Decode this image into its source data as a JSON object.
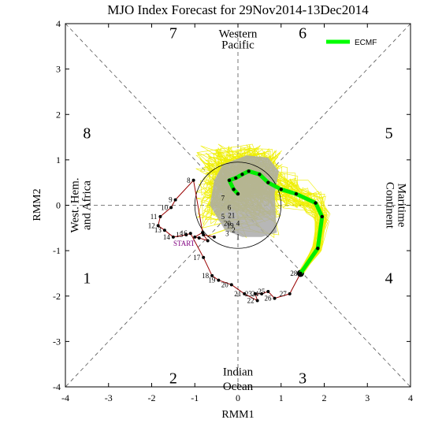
{
  "chart_data": {
    "type": "line",
    "title": "MJO Index Forecast for 29Nov2014-13Dec2014",
    "xlabel": "RMM1",
    "ylabel": "RMM2",
    "xlim": [
      -4,
      4
    ],
    "ylim": [
      -4,
      4
    ],
    "xticks": [
      "-4",
      "-3",
      "-2",
      "-1",
      "0",
      "1",
      "2",
      "3",
      "4"
    ],
    "yticks": [
      "-4",
      "-3",
      "-2",
      "-1",
      "0",
      "1",
      "2",
      "3",
      "4"
    ],
    "phases": [
      {
        "label": "1",
        "x": -3.5,
        "y": -1.6
      },
      {
        "label": "2",
        "x": -1.5,
        "y": -3.8
      },
      {
        "label": "3",
        "x": 1.5,
        "y": -3.8
      },
      {
        "label": "4",
        "x": 3.5,
        "y": -1.6
      },
      {
        "label": "5",
        "x": 3.5,
        "y": 1.6
      },
      {
        "label": "6",
        "x": 1.5,
        "y": 3.8
      },
      {
        "label": "7",
        "x": -1.5,
        "y": 3.8
      },
      {
        "label": "8",
        "x": -3.5,
        "y": 1.6
      }
    ],
    "regions": {
      "top": [
        "Western",
        "Pacific"
      ],
      "bottom": [
        "Indian",
        "Ocean"
      ],
      "left": [
        "West. Hem.",
        "and Africa"
      ],
      "right": [
        "Maritime",
        "Continent"
      ]
    },
    "legend": {
      "label": "ECMF",
      "color": "#00ff00",
      "position": "top-right"
    },
    "start_label": "START",
    "observed": {
      "color": "#990000",
      "points": [
        {
          "label": "",
          "x": -0.55,
          "y": -0.7
        },
        {
          "label": "",
          "x": -0.8,
          "y": -0.65
        },
        {
          "label": "",
          "x": -0.7,
          "y": -0.78
        },
        {
          "label": "",
          "x": -0.9,
          "y": -0.72
        },
        {
          "label": "",
          "x": -1.0,
          "y": -0.7
        },
        {
          "label": "",
          "x": -0.82,
          "y": -0.6
        },
        {
          "label": "8",
          "x": -1.03,
          "y": 0.55
        },
        {
          "label": "9",
          "x": -1.45,
          "y": 0.12
        },
        {
          "label": "10",
          "x": -1.55,
          "y": -0.05
        },
        {
          "label": "11",
          "x": -1.8,
          "y": -0.25
        },
        {
          "label": "12",
          "x": -1.85,
          "y": -0.45
        },
        {
          "label": "13",
          "x": -1.7,
          "y": -0.55
        },
        {
          "label": "14",
          "x": -1.5,
          "y": -0.7
        },
        {
          "label": "15",
          "x": -1.2,
          "y": -0.65
        },
        {
          "label": "16",
          "x": -1.1,
          "y": -0.62
        },
        {
          "label": "17",
          "x": -0.8,
          "y": -1.15
        },
        {
          "label": "18",
          "x": -0.6,
          "y": -1.55
        },
        {
          "label": "19",
          "x": -0.45,
          "y": -1.65
        },
        {
          "label": "20",
          "x": -0.15,
          "y": -1.75
        },
        {
          "label": "21",
          "x": 0.15,
          "y": -1.95
        },
        {
          "label": "22",
          "x": 0.45,
          "y": -2.1
        },
        {
          "label": "23",
          "x": 0.4,
          "y": -1.95
        },
        {
          "label": "24",
          "x": 0.55,
          "y": -1.95
        },
        {
          "label": "25",
          "x": 0.7,
          "y": -1.9
        },
        {
          "label": "26",
          "x": 0.85,
          "y": -2.05
        },
        {
          "label": "27",
          "x": 1.2,
          "y": -1.95
        },
        {
          "label": "28",
          "x": 1.45,
          "y": -1.5
        }
      ],
      "loop_labels": [
        {
          "label": "7",
          "x": -0.35,
          "y": 0.1
        },
        {
          "label": "6",
          "x": -0.2,
          "y": -0.1
        },
        {
          "label": "5",
          "x": -0.35,
          "y": -0.3
        },
        {
          "label": "4",
          "x": 0.0,
          "y": -0.45
        },
        {
          "label": "3",
          "x": -0.25,
          "y": -0.68
        },
        {
          "label": "2",
          "x": -0.1,
          "y": -0.6
        },
        {
          "label": "1",
          "x": 0.0,
          "y": -0.75
        },
        {
          "label": "19",
          "x": -0.18,
          "y": -0.5
        },
        {
          "label": "20",
          "x": -0.25,
          "y": -0.45
        },
        {
          "label": "21",
          "x": -0.15,
          "y": -0.28
        }
      ]
    },
    "ensemble_mean": {
      "color": "#00ee00",
      "points": [
        {
          "x": 1.45,
          "y": -1.5
        },
        {
          "x": 1.85,
          "y": -0.95
        },
        {
          "x": 1.95,
          "y": -0.25
        },
        {
          "x": 1.8,
          "y": 0.05
        },
        {
          "x": 1.35,
          "y": 0.25
        },
        {
          "x": 1.0,
          "y": 0.35
        },
        {
          "x": 0.7,
          "y": 0.5
        },
        {
          "x": 0.5,
          "y": 0.68
        },
        {
          "x": 0.25,
          "y": 0.75
        },
        {
          "x": 0.1,
          "y": 0.68
        },
        {
          "x": -0.05,
          "y": 0.6
        },
        {
          "x": -0.2,
          "y": 0.55
        },
        {
          "x": -0.1,
          "y": 0.35
        },
        {
          "x": 0.0,
          "y": 0.25
        }
      ]
    }
  }
}
